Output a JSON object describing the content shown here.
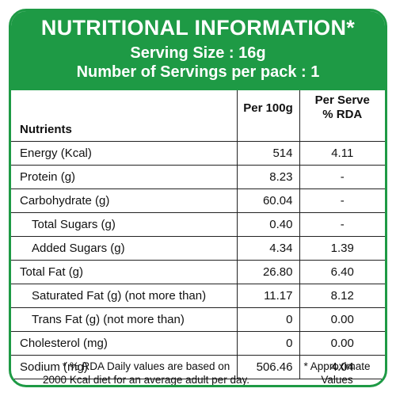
{
  "header": {
    "title": "NUTRITIONAL INFORMATION*",
    "serving_size": "Serving Size : 16g",
    "servings_per_pack": "Number of Servings per pack : 1"
  },
  "table": {
    "columns": {
      "nutrients": "Nutrients",
      "per100g": "Per 100g",
      "per_serve_line1": "Per Serve",
      "per_serve_line2": "% RDA"
    },
    "rows": [
      {
        "name": "Energy (Kcal)",
        "per100g": "514",
        "rda": "4.11"
      },
      {
        "name": "Protein (g)",
        "per100g": "8.23",
        "rda": "-"
      },
      {
        "name": "Carbohydrate (g)",
        "per100g": "60.04",
        "rda": "-"
      },
      {
        "name": "Total Sugars (g)",
        "per100g": "0.40",
        "rda": "-"
      },
      {
        "name": "Added Sugars (g)",
        "per100g": "4.34",
        "rda": "1.39"
      },
      {
        "name": "Total Fat (g)",
        "per100g": "26.80",
        "rda": "6.40"
      },
      {
        "name": "Saturated Fat (g) (not more than)",
        "per100g": "11.17",
        "rda": "8.12"
      },
      {
        "name": "Trans Fat (g) (not more than)",
        "per100g": "0",
        "rda": "0.00"
      },
      {
        "name": "Cholesterol (mg)",
        "per100g": "0",
        "rda": "0.00"
      },
      {
        "name": "Sodium (mg)",
        "per100g": "506.46",
        "rda": "4.04"
      }
    ]
  },
  "footer": {
    "rda_note_line1": "* % RDA Daily values are based on",
    "rda_note_line2": "2000 Kcal diet for an average adult per day.",
    "approx_line1": "* Approximate",
    "approx_line2": "Values"
  },
  "colors": {
    "brand_green": "#1e9a45"
  }
}
